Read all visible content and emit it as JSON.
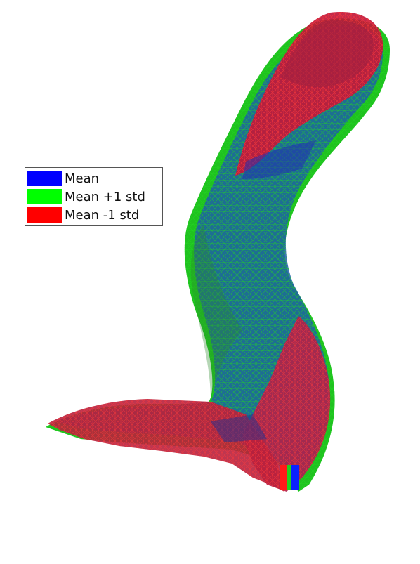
{
  "figure": {
    "description_type": "3D mesh shape comparison",
    "legend": [
      {
        "label": "Mean",
        "color": "#0000ff"
      },
      {
        "label": "Mean +1 std",
        "color": "#00ff00"
      },
      {
        "label": "Mean -1 std",
        "color": "#ff0000"
      }
    ]
  }
}
